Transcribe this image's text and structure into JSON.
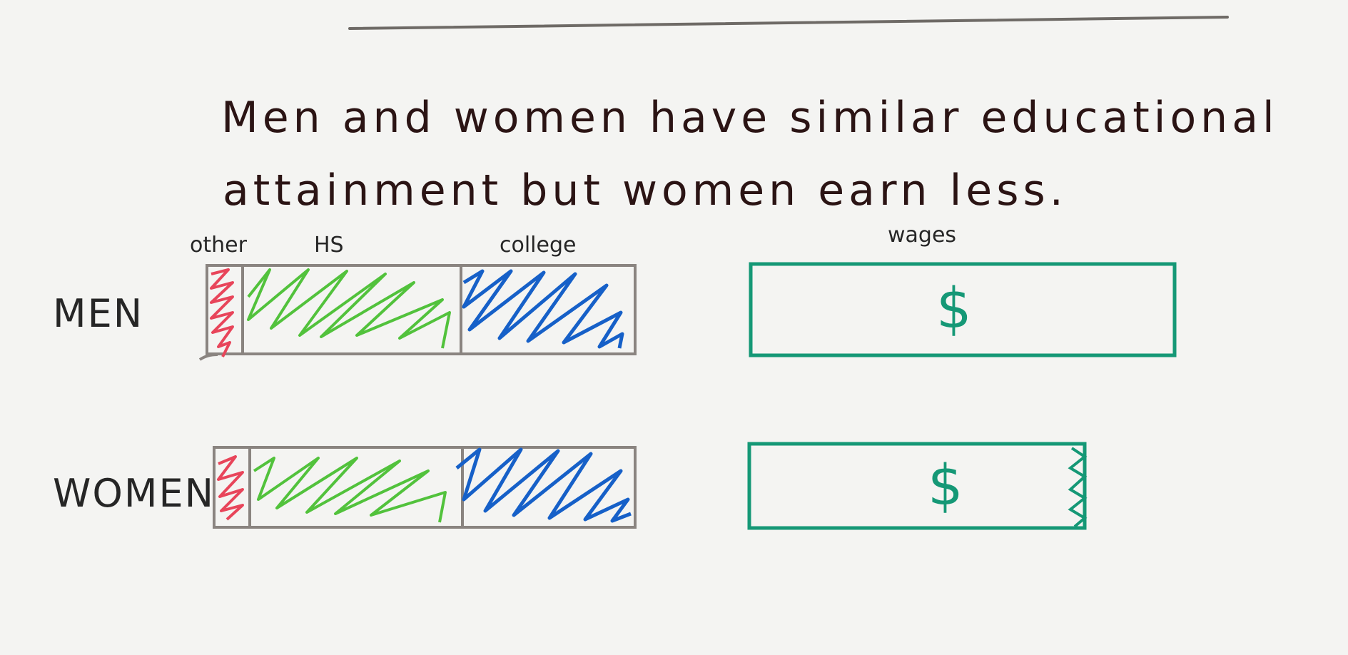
{
  "note": {
    "line1": "Men and women have similar educational",
    "line2": "attainment but women earn less."
  },
  "labels": {
    "other": "other",
    "hs": "HS",
    "college": "college",
    "wages": "wages"
  },
  "rows": [
    {
      "label": "MEN",
      "wage_symbol": "$",
      "wage_fraction": 1.0
    },
    {
      "label": "WOMEN",
      "wage_symbol": "$",
      "wage_fraction": 0.79
    }
  ],
  "colors": {
    "other": "#e8455a",
    "hs": "#52c23c",
    "college": "#1660c8",
    "wages": "#159876",
    "frame": "#8a8480",
    "ink": "#2b1414",
    "rule": "#6e6a66"
  }
}
